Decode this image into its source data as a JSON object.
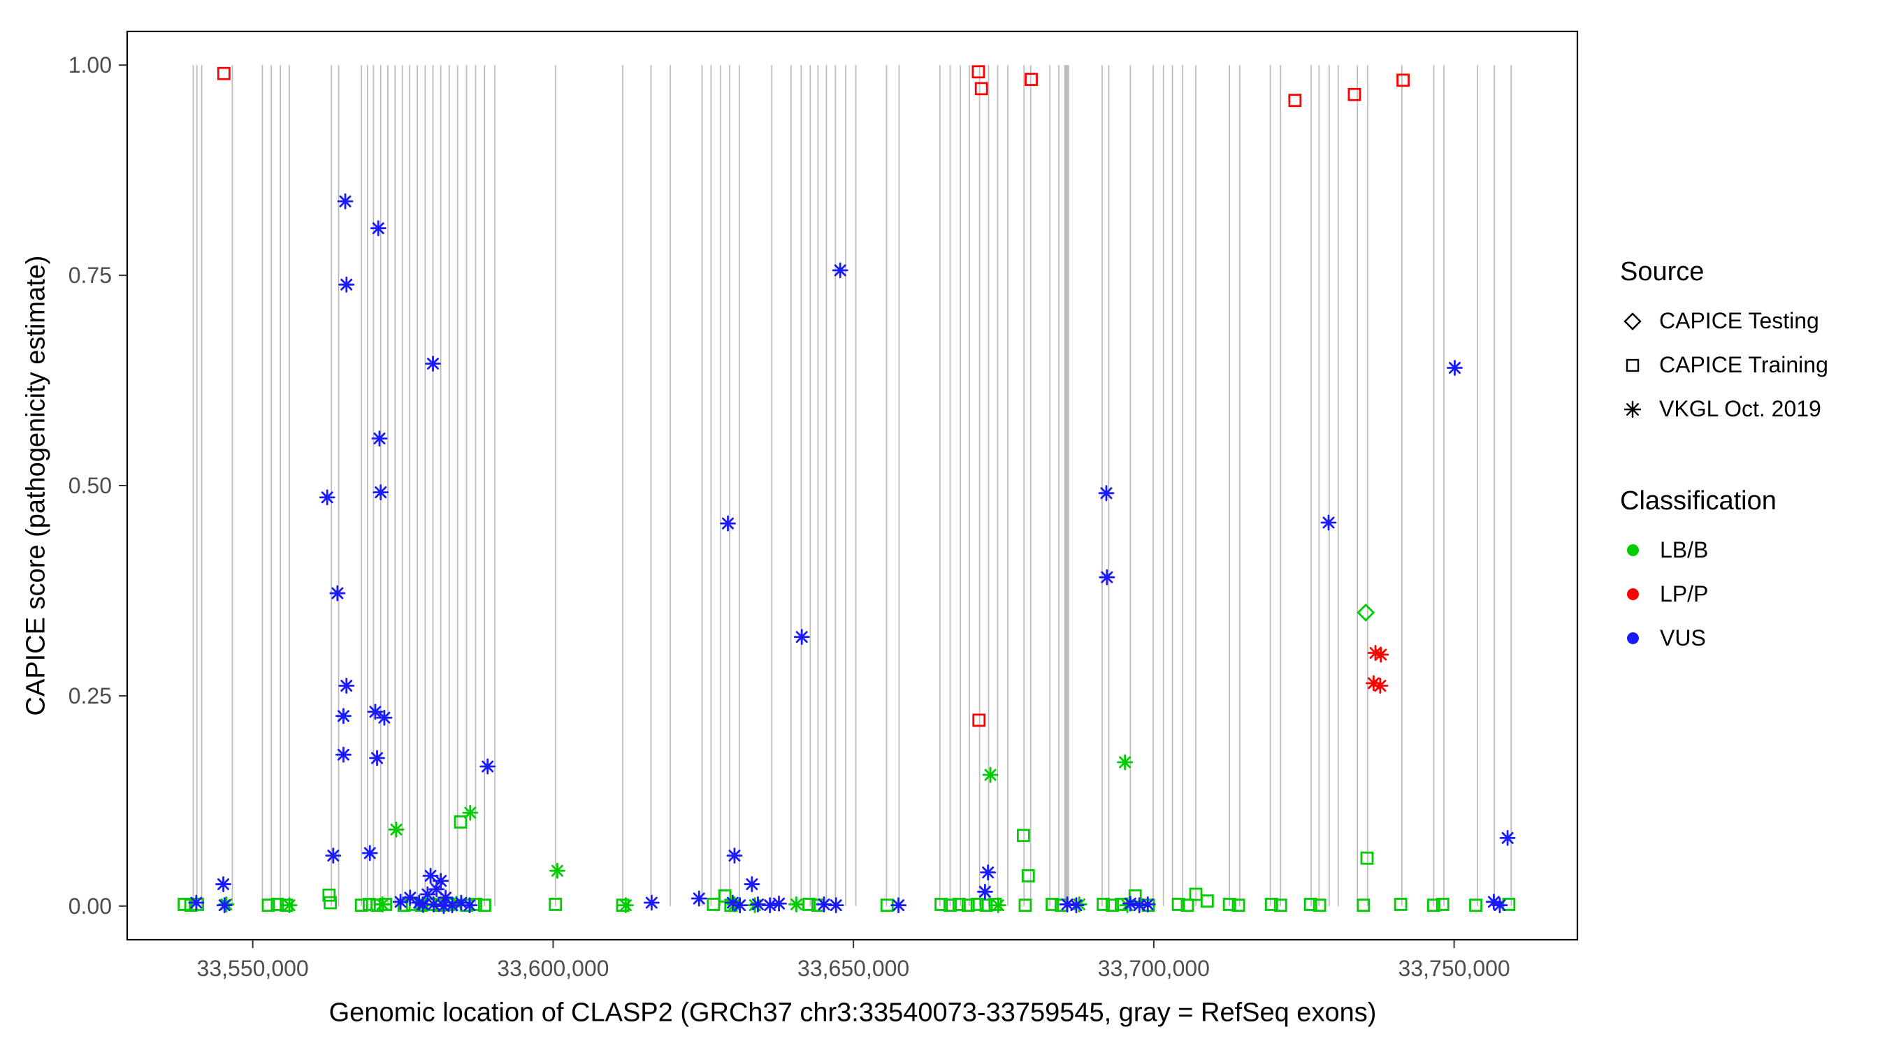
{
  "colors": {
    "lbb": "#00CC00",
    "lpp": "#FF0000",
    "vus": "#1A1AFF",
    "exon": "#BBBBBB",
    "axis_text": "#4D4D4D",
    "panel_border": "#000000"
  },
  "legend": {
    "source": {
      "title": "Source",
      "items": [
        {
          "label": "CAPICE Testing",
          "shape": "diamond"
        },
        {
          "label": "CAPICE Training",
          "shape": "square"
        },
        {
          "label": "VKGL Oct. 2019",
          "shape": "asterisk"
        }
      ]
    },
    "classification": {
      "title": "Classification",
      "items": [
        {
          "label": "LB/B",
          "color": "#00CC00"
        },
        {
          "label": "LP/P",
          "color": "#FF0000"
        },
        {
          "label": "VUS",
          "color": "#1A1AFF"
        }
      ]
    }
  },
  "chart_data": {
    "type": "scatter",
    "title": "",
    "xlabel": "Genomic location of CLASP2 (GRCh37 chr3:33540073-33759545, gray = RefSeq exons)",
    "ylabel": "CAPICE score (pathogenicity estimate)",
    "xlim": [
      33529100,
      33770520
    ],
    "ylim": [
      -0.04,
      1.04
    ],
    "grid": "off",
    "legend_position": "right",
    "x_ticks": [
      {
        "value": 33550000,
        "label": "33,550,000"
      },
      {
        "value": 33600000,
        "label": "33,600,000"
      },
      {
        "value": 33650000,
        "label": "33,650,000"
      },
      {
        "value": 33700000,
        "label": "33,700,000"
      },
      {
        "value": 33750000,
        "label": "33,750,000"
      }
    ],
    "y_ticks": [
      {
        "value": 0.0,
        "label": "0.00"
      },
      {
        "value": 0.25,
        "label": "0.25"
      },
      {
        "value": 0.5,
        "label": "0.50"
      },
      {
        "value": 0.75,
        "label": "0.75"
      },
      {
        "value": 1.0,
        "label": "1.00"
      }
    ],
    "exons": [
      33540100,
      33540700,
      33541500,
      33546600,
      33551600,
      33553100,
      33554600,
      33556100,
      33563100,
      33564300,
      33568100,
      33569100,
      33570100,
      33571300,
      33572500,
      33573700,
      33574900,
      33576100,
      33577400,
      33578700,
      33580000,
      33581300,
      33582700,
      33584100,
      33585600,
      33587100,
      33588600,
      33590300,
      33600400,
      33611600,
      33616300,
      33619500,
      33624800,
      33626300,
      33627900,
      33629400,
      33631000,
      33636400,
      33639600,
      33641300,
      33642800,
      33644100,
      33645500,
      33647000,
      33648700,
      33650400,
      33655500,
      33657600,
      33664400,
      33666100,
      33667800,
      33669300,
      33671000,
      33672500,
      33674000,
      33675700,
      33678400,
      33679500,
      33682700,
      33684200,
      33691400,
      33692500,
      33696100,
      33699900,
      33701600,
      33703100,
      33704800,
      33707000,
      33712600,
      33714300,
      33719400,
      33721100,
      33726200,
      33727500,
      33729200,
      33730700,
      33733900,
      33735600,
      33741300,
      33746600,
      33748300,
      33753900,
      33756700,
      33759500
    ],
    "wide_exons": [
      {
        "pos": 33685500,
        "w": 7
      }
    ],
    "series": [
      {
        "name": "LP/P CAPICE Training",
        "shape": "square",
        "color": "#FF0000",
        "points": [
          [
            33545200,
            0.99
          ],
          [
            33670800,
            0.992
          ],
          [
            33671300,
            0.972
          ],
          [
            33679600,
            0.983
          ],
          [
            33723500,
            0.958
          ],
          [
            33733400,
            0.965
          ],
          [
            33741500,
            0.982
          ],
          [
            33670900,
            0.221
          ]
        ]
      },
      {
        "name": "LB/B CAPICE Training",
        "shape": "square",
        "color": "#00CC00",
        "points": [
          [
            33584600,
            0.1
          ],
          [
            33678300,
            0.084
          ],
          [
            33735500,
            0.057
          ],
          [
            33679100,
            0.036
          ],
          [
            33562700,
            0.013
          ],
          [
            33562900,
            0.004
          ],
          [
            33707000,
            0.014
          ],
          [
            33708900,
            0.006
          ],
          [
            33628600,
            0.012
          ],
          [
            33696900,
            0.012
          ],
          [
            33538600,
            0.002
          ],
          [
            33539700,
            0.001
          ],
          [
            33540800,
            0.002
          ],
          [
            33552600,
            0.001
          ],
          [
            33554100,
            0.002
          ],
          [
            33555600,
            0.001
          ],
          [
            33568100,
            0.001
          ],
          [
            33569400,
            0.002
          ],
          [
            33570700,
            0.001
          ],
          [
            33572100,
            0.002
          ],
          [
            33575200,
            0.001
          ],
          [
            33576600,
            0.002
          ],
          [
            33578100,
            0.001
          ],
          [
            33579600,
            0.002
          ],
          [
            33581100,
            0.001
          ],
          [
            33582600,
            0.002
          ],
          [
            33585600,
            0.001
          ],
          [
            33587100,
            0.002
          ],
          [
            33588600,
            0.001
          ],
          [
            33600400,
            0.002
          ],
          [
            33611600,
            0.001
          ],
          [
            33626700,
            0.002
          ],
          [
            33629600,
            0.001
          ],
          [
            33642600,
            0.002
          ],
          [
            33644100,
            0.001
          ],
          [
            33655600,
            0.001
          ],
          [
            33664600,
            0.002
          ],
          [
            33666100,
            0.001
          ],
          [
            33667600,
            0.002
          ],
          [
            33669100,
            0.001
          ],
          [
            33670600,
            0.002
          ],
          [
            33672100,
            0.001
          ],
          [
            33673600,
            0.002
          ],
          [
            33678600,
            0.001
          ],
          [
            33683100,
            0.002
          ],
          [
            33684600,
            0.001
          ],
          [
            33691600,
            0.002
          ],
          [
            33693100,
            0.001
          ],
          [
            33694600,
            0.002
          ],
          [
            33699100,
            0.001
          ],
          [
            33704100,
            0.002
          ],
          [
            33705600,
            0.001
          ],
          [
            33712600,
            0.002
          ],
          [
            33714100,
            0.001
          ],
          [
            33719600,
            0.002
          ],
          [
            33721100,
            0.001
          ],
          [
            33726100,
            0.002
          ],
          [
            33727600,
            0.001
          ],
          [
            33734900,
            0.001
          ],
          [
            33741100,
            0.002
          ],
          [
            33746600,
            0.001
          ],
          [
            33748100,
            0.002
          ],
          [
            33753600,
            0.001
          ],
          [
            33759100,
            0.002
          ]
        ]
      },
      {
        "name": "LB/B CAPICE Testing",
        "shape": "diamond",
        "color": "#00CC00",
        "points": [
          [
            33735300,
            0.349
          ]
        ]
      },
      {
        "name": "LB/B VKGL Oct. 2019",
        "shape": "asterisk",
        "color": "#00CC00",
        "points": [
          [
            33695200,
            0.171
          ],
          [
            33672800,
            0.156
          ],
          [
            33586200,
            0.111
          ],
          [
            33573900,
            0.091
          ],
          [
            33600700,
            0.042
          ],
          [
            33545600,
            0.002
          ],
          [
            33556100,
            0.001
          ],
          [
            33571600,
            0.002
          ],
          [
            33578400,
            0.001
          ],
          [
            33583900,
            0.003
          ],
          [
            33612100,
            0.001
          ],
          [
            33630200,
            0.002
          ],
          [
            33633600,
            0.001
          ],
          [
            33640500,
            0.002
          ],
          [
            33674100,
            0.001
          ],
          [
            33687600,
            0.002
          ],
          [
            33695600,
            0.001
          ]
        ]
      },
      {
        "name": "LP/P VKGL Oct. 2019",
        "shape": "asterisk",
        "color": "#FF0000",
        "points": [
          [
            33736900,
            0.301
          ],
          [
            33737800,
            0.299
          ],
          [
            33736600,
            0.265
          ],
          [
            33737700,
            0.262
          ]
        ]
      },
      {
        "name": "VUS VKGL Oct. 2019",
        "shape": "asterisk",
        "color": "#1A1AFF",
        "points": [
          [
            33565400,
            0.838
          ],
          [
            33570900,
            0.806
          ],
          [
            33647800,
            0.756
          ],
          [
            33565600,
            0.739
          ],
          [
            33580000,
            0.645
          ],
          [
            33750100,
            0.64
          ],
          [
            33571100,
            0.556
          ],
          [
            33692100,
            0.491
          ],
          [
            33571300,
            0.492
          ],
          [
            33562400,
            0.486
          ],
          [
            33729100,
            0.456
          ],
          [
            33629100,
            0.455
          ],
          [
            33692200,
            0.391
          ],
          [
            33564100,
            0.372
          ],
          [
            33641400,
            0.32
          ],
          [
            33565600,
            0.262
          ],
          [
            33570400,
            0.231
          ],
          [
            33565100,
            0.226
          ],
          [
            33571900,
            0.224
          ],
          [
            33565100,
            0.18
          ],
          [
            33570700,
            0.176
          ],
          [
            33589100,
            0.166
          ],
          [
            33758900,
            0.081
          ],
          [
            33569500,
            0.063
          ],
          [
            33563400,
            0.06
          ],
          [
            33630200,
            0.06
          ],
          [
            33672400,
            0.04
          ],
          [
            33579600,
            0.036
          ],
          [
            33581300,
            0.03
          ],
          [
            33545100,
            0.026
          ],
          [
            33633100,
            0.026
          ],
          [
            33580600,
            0.02
          ],
          [
            33671900,
            0.017
          ],
          [
            33579100,
            0.014
          ],
          [
            33576200,
            0.01
          ],
          [
            33582100,
            0.01
          ],
          [
            33624300,
            0.009
          ],
          [
            33574600,
            0.005
          ],
          [
            33756600,
            0.005
          ],
          [
            33540600,
            0.004
          ],
          [
            33577700,
            0.004
          ],
          [
            33584700,
            0.004
          ],
          [
            33616400,
            0.004
          ],
          [
            33629900,
            0.004
          ],
          [
            33637600,
            0.003
          ],
          [
            33696100,
            0.003
          ],
          [
            33578300,
            0.002
          ],
          [
            33580100,
            0.002
          ],
          [
            33634100,
            0.002
          ],
          [
            33645100,
            0.002
          ],
          [
            33685600,
            0.002
          ],
          [
            33699000,
            0.002
          ],
          [
            33583200,
            0.001
          ],
          [
            33586100,
            0.001
          ],
          [
            33631100,
            0.001
          ],
          [
            33636100,
            0.001
          ],
          [
            33647100,
            0.001
          ],
          [
            33657500,
            0.001
          ],
          [
            33687100,
            0.001
          ],
          [
            33697600,
            0.001
          ],
          [
            33757600,
            0.001
          ],
          [
            33581800,
            0.0
          ],
          [
            33545300,
            0.001
          ]
        ]
      }
    ]
  }
}
